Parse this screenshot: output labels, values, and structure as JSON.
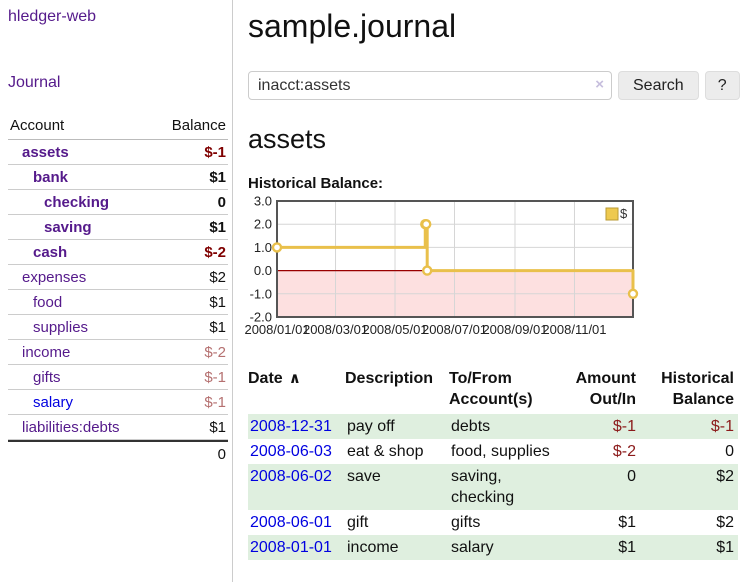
{
  "app": {
    "brand": "hledger-web",
    "nav_journal": "Journal"
  },
  "sidebar": {
    "accounts_header": {
      "account": "Account",
      "balance": "Balance"
    },
    "accounts": [
      {
        "name": "assets",
        "balance": "$-1",
        "depth": 1,
        "bold": true,
        "balance_class": "neg-strong",
        "link_class": ""
      },
      {
        "name": "bank",
        "balance": "$1",
        "depth": 2,
        "bold": true,
        "balance_class": "",
        "link_class": ""
      },
      {
        "name": "checking",
        "balance": "0",
        "depth": 3,
        "bold": true,
        "balance_class": "",
        "link_class": ""
      },
      {
        "name": "saving",
        "balance": "$1",
        "depth": 3,
        "bold": true,
        "balance_class": "",
        "link_class": ""
      },
      {
        "name": "cash",
        "balance": "$-2",
        "depth": 2,
        "bold": true,
        "balance_class": "neg-strong",
        "link_class": ""
      },
      {
        "name": "expenses",
        "balance": "$2",
        "depth": 1,
        "bold": false,
        "balance_class": "",
        "link_class": ""
      },
      {
        "name": "food",
        "balance": "$1",
        "depth": 2,
        "bold": false,
        "balance_class": "",
        "link_class": ""
      },
      {
        "name": "supplies",
        "balance": "$1",
        "depth": 2,
        "bold": false,
        "balance_class": "",
        "link_class": ""
      },
      {
        "name": "income",
        "balance": "$-2",
        "depth": 1,
        "bold": false,
        "balance_class": "neg-muted",
        "link_class": ""
      },
      {
        "name": "gifts",
        "balance": "$-1",
        "depth": 2,
        "bold": false,
        "balance_class": "neg-muted",
        "link_class": ""
      },
      {
        "name": "salary",
        "balance": "$-1",
        "depth": 2,
        "bold": false,
        "balance_class": "neg-muted",
        "link_class": "blue"
      },
      {
        "name": "liabilities:debts",
        "balance": "$1",
        "depth": 1,
        "bold": false,
        "balance_class": "",
        "link_class": ""
      }
    ],
    "total": "0"
  },
  "header": {
    "title": "sample.journal"
  },
  "search": {
    "value": "inacct:assets",
    "clear_icon": "×",
    "button_label": "Search",
    "help_label": "?"
  },
  "register": {
    "heading": "assets",
    "chart_label": "Historical Balance:"
  },
  "chart_data": {
    "type": "line",
    "step": true,
    "title": "Historical Balance",
    "series": [
      {
        "name": "$",
        "x": [
          "2008-01-01",
          "2008-06-01",
          "2008-06-02",
          "2008-06-03",
          "2008-12-31"
        ],
        "values": [
          1,
          2,
          2,
          0,
          -1
        ]
      }
    ],
    "x_domain": [
      "2008-01-01",
      "2008-12-31"
    ],
    "ylim": [
      -2,
      3
    ],
    "y_ticks": [
      3.0,
      2.0,
      1.0,
      0.0,
      -1.0,
      -2.0
    ],
    "x_ticks": [
      "2008/01/01",
      "2008/03/01",
      "2008/05/01",
      "2008/07/01",
      "2008/09/01",
      "2008/11/01"
    ],
    "legend": "$",
    "legend_position": "top-right",
    "grid": true,
    "colors": {
      "line": "#e9c04b",
      "marker_fill": "#ffffff",
      "negative_fill": "#fde0e0",
      "zero_line": "#990000",
      "grid": "#d6d6d6",
      "border": "#555555",
      "legend_fill": "#eec94f",
      "legend_stroke": "#b99a33"
    }
  },
  "table": {
    "headers": {
      "date": "Date",
      "description": "Description",
      "accounts": "To/From Account(s)",
      "amount": "Amount Out/In",
      "balance": "Historical Balance"
    },
    "sort_icon": "∧",
    "rows": [
      {
        "date": "2008-12-31",
        "description": "pay off",
        "accounts": "debts",
        "amount": "$-1",
        "amount_neg": true,
        "balance": "$-1",
        "balance_neg": true
      },
      {
        "date": "2008-06-03",
        "description": "eat & shop",
        "accounts": "food, supplies",
        "amount": "$-2",
        "amount_neg": true,
        "balance": "0",
        "balance_neg": false
      },
      {
        "date": "2008-06-02",
        "description": "save",
        "accounts": "saving, checking",
        "amount": "0",
        "amount_neg": false,
        "balance": "$2",
        "balance_neg": false
      },
      {
        "date": "2008-06-01",
        "description": "gift",
        "accounts": "gifts",
        "amount": "$1",
        "amount_neg": false,
        "balance": "$2",
        "balance_neg": false
      },
      {
        "date": "2008-01-01",
        "description": "income",
        "accounts": "salary",
        "amount": "$1",
        "amount_neg": false,
        "balance": "$1",
        "balance_neg": false
      }
    ]
  }
}
